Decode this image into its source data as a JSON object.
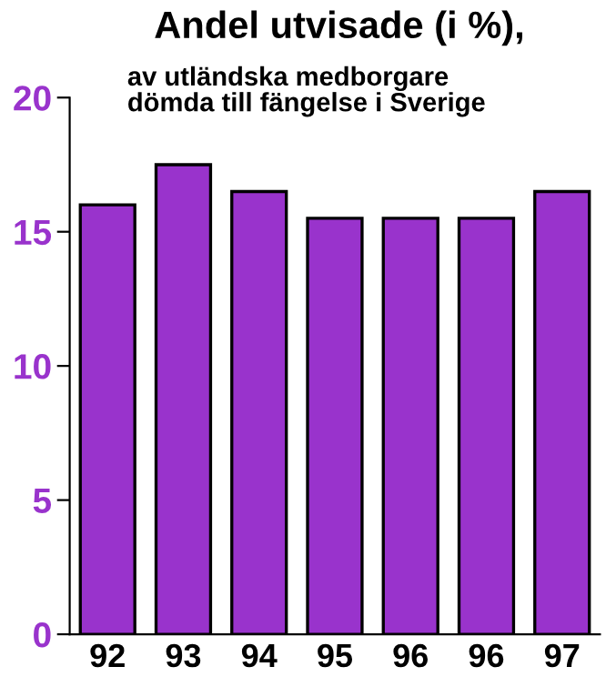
{
  "chart_data": {
    "type": "bar",
    "title": "Andel utvisade (i %),",
    "subtitle": "av utländska medborgare\ndömda till fängelse i Sverige",
    "categories": [
      "92",
      "93",
      "94",
      "95",
      "96",
      "96",
      "97"
    ],
    "values": [
      16,
      17.5,
      16.5,
      15.5,
      15.5,
      15.5,
      16.5
    ],
    "color": "#9933cc",
    "ylim": [
      0,
      20
    ],
    "yticks": [
      0,
      5,
      10,
      15,
      20
    ],
    "grid": false,
    "legend": false
  }
}
